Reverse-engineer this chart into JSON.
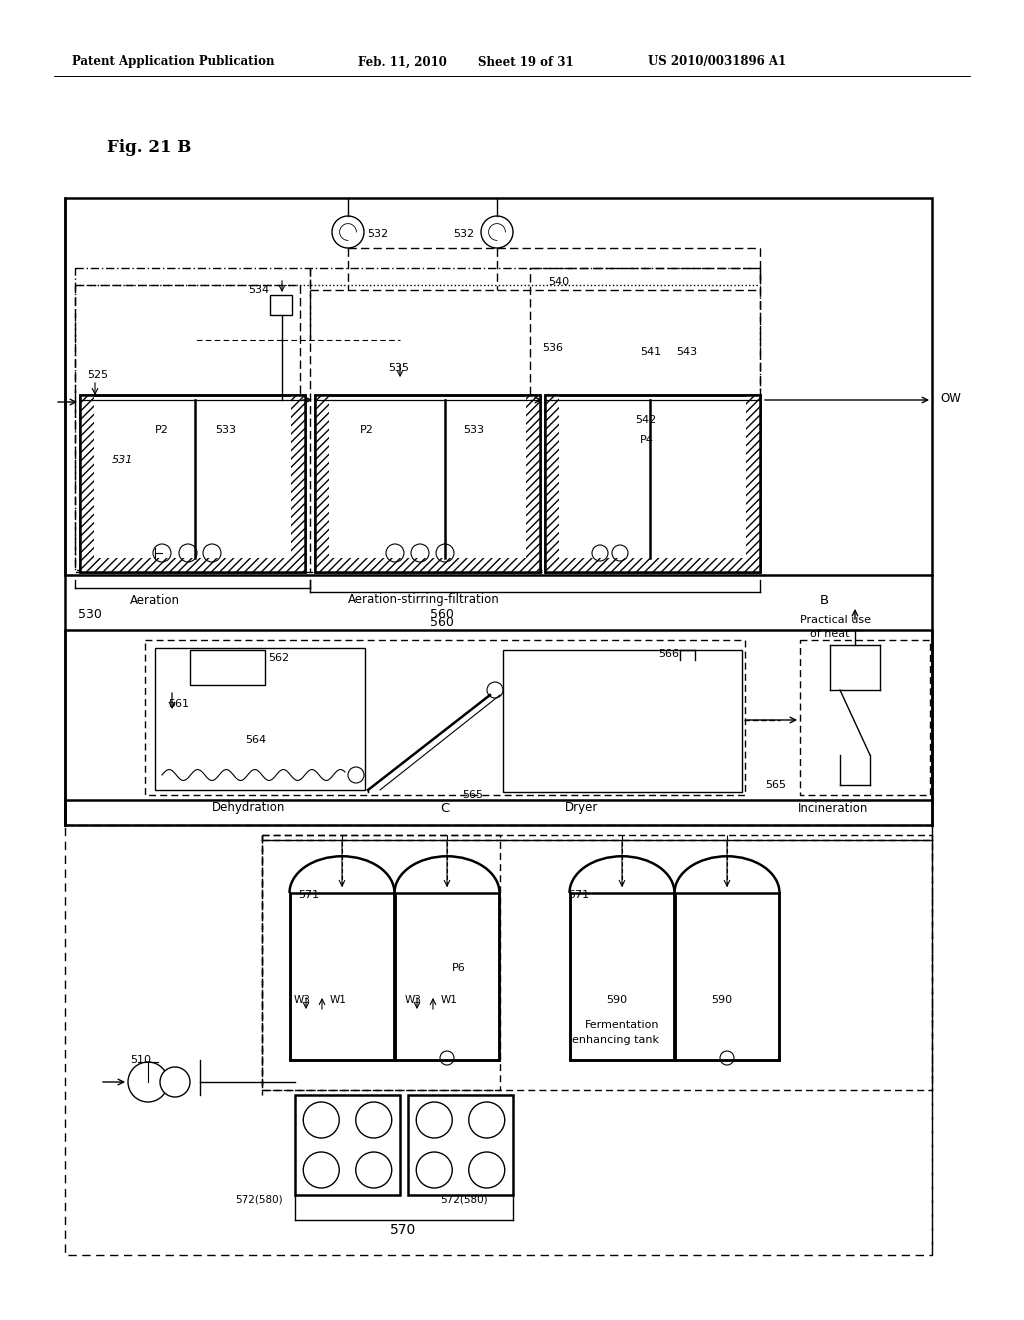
{
  "bg_color": "#ffffff",
  "header_left": "Patent Application Publication",
  "header_mid1": "Feb. 11, 2010",
  "header_mid2": "Sheet 19 of 31",
  "header_right": "US 2010/0031896 A1",
  "fig_label": "Fig. 21 B",
  "lw": 1.0,
  "lw_thick": 1.8
}
